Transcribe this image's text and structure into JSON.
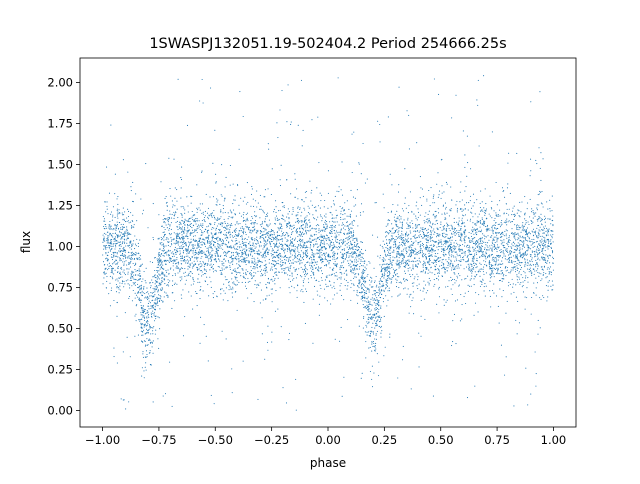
{
  "chart_data": {
    "type": "scatter",
    "title": "1SWASPJ132051.19-502404.2 Period 254666.25s",
    "xlabel": "phase",
    "ylabel": "flux",
    "xlim": [
      -1.1,
      1.1
    ],
    "ylim": [
      -0.1,
      2.15
    ],
    "xticks": [
      -1.0,
      -0.75,
      -0.5,
      -0.25,
      0.0,
      0.25,
      0.5,
      0.75,
      1.0
    ],
    "xtick_labels": [
      "−1.00",
      "−0.75",
      "−0.50",
      "−0.25",
      "0.00",
      "0.25",
      "0.50",
      "0.75",
      "1.00"
    ],
    "yticks": [
      0.0,
      0.25,
      0.5,
      0.75,
      1.0,
      1.25,
      1.5,
      1.75,
      2.0
    ],
    "ytick_labels": [
      "0.00",
      "0.25",
      "0.50",
      "0.75",
      "1.00",
      "1.25",
      "1.50",
      "1.75",
      "2.00"
    ],
    "grid": false,
    "legend": "none",
    "marker_color": "#1f77b4",
    "series": [
      {
        "light_curve_profile": {
          "phase_range": [
            -1.0,
            1.0
          ],
          "baseline_flux": 1.0,
          "scatter": 0.13,
          "eclipses": [
            {
              "phase": -0.8,
              "min_flux": 0.55,
              "width": 0.035
            },
            {
              "phase": 0.2,
              "min_flux": 0.55,
              "width": 0.035
            }
          ]
        }
      }
    ]
  }
}
